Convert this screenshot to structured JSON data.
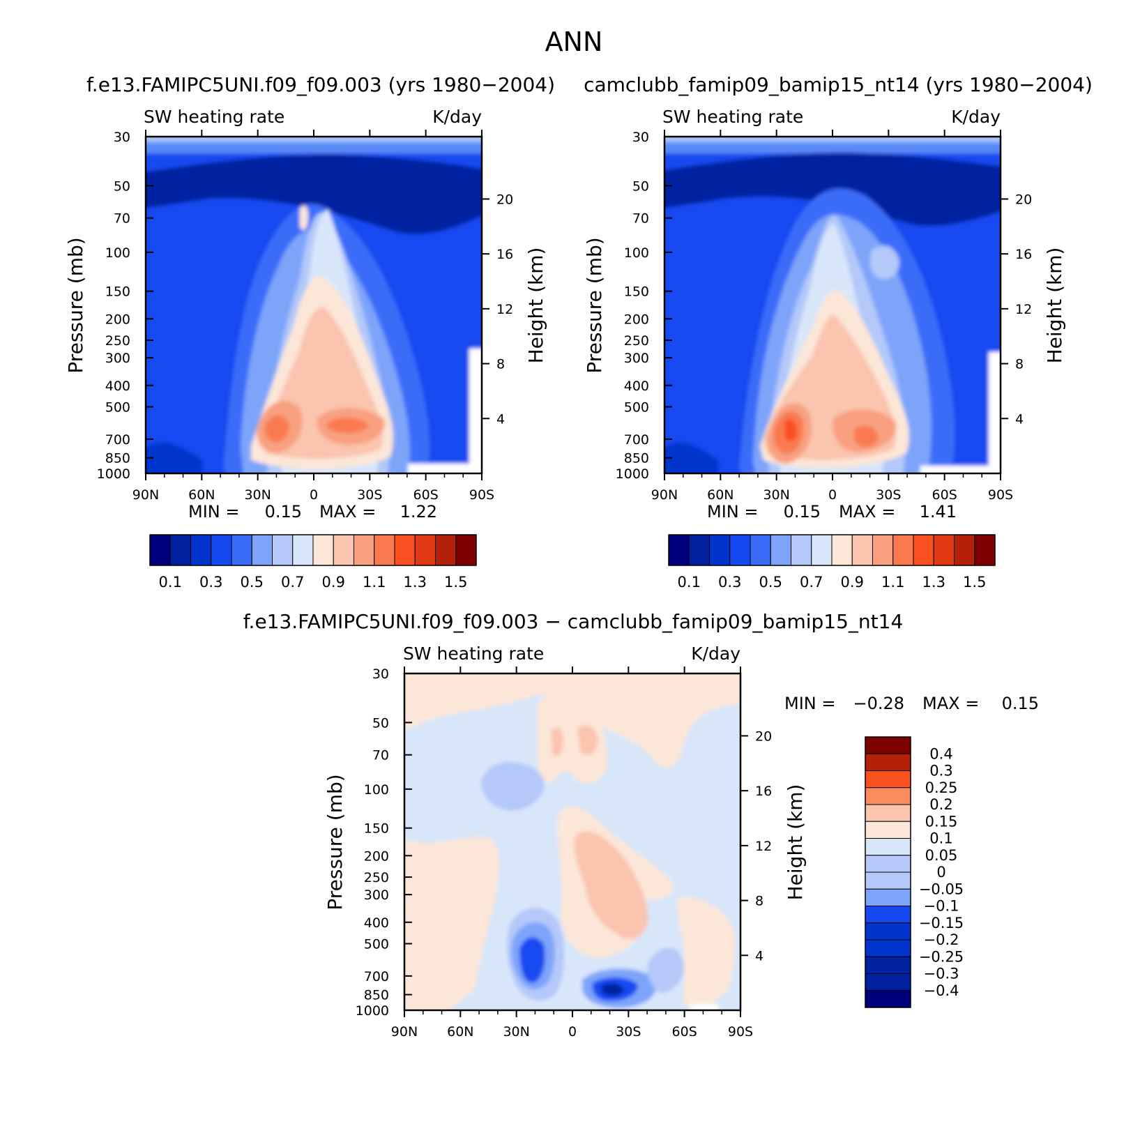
{
  "figure": {
    "title": "ANN",
    "diff_title": "f.e13.FAMIPC5UNI.f09_f09.003 − camclubb_famip09_bamip15_nt14"
  },
  "colors": {
    "main_scale": [
      "#00007f",
      "#0020a0",
      "#0034cc",
      "#1448f0",
      "#3a6cf8",
      "#7ea4fa",
      "#b4c8fa",
      "#d8e6fa",
      "#fce6d8",
      "#fac4ae",
      "#f8a080",
      "#fa7a50",
      "#fa5020",
      "#e03810",
      "#b42008",
      "#7f0000"
    ],
    "diff_scale": [
      "#00007f",
      "#0020a0",
      "#0034cc",
      "#1448f0",
      "#7ea4fa",
      "#b4c8fa",
      "#d8e6fa",
      "#fce6d8",
      "#fac4ae",
      "#f88c5c",
      "#fa5020",
      "#b42008",
      "#7f0000"
    ]
  },
  "chart_data": [
    {
      "type": "heatmap",
      "panel": "left",
      "title": "f.e13.FAMIPC5UNI.f09_f09.003 (yrs 1980−2004)",
      "field_label": "SW heating rate",
      "units": "K/day",
      "ylabel": "Pressure (mb)",
      "ylabel_right": "Height (km)",
      "x_ticks": [
        "90N",
        "60N",
        "30N",
        "0",
        "30S",
        "60S",
        "90S"
      ],
      "y_ticks": [
        "30",
        "50",
        "70",
        "100",
        "150",
        "200",
        "250",
        "300",
        "400",
        "500",
        "700",
        "850",
        "1000"
      ],
      "y_ticks_right": [
        "20",
        "16",
        "12",
        "8",
        "4"
      ],
      "stats": {
        "min_label": "MIN =",
        "min": "0.15",
        "max_label": "MAX =",
        "max": "1.22"
      },
      "colorbar_labels": [
        "0.1",
        "0.3",
        "0.5",
        "0.7",
        "0.9",
        "1.1",
        "1.3",
        "1.5"
      ]
    },
    {
      "type": "heatmap",
      "panel": "right",
      "title": "camclubb_famip09_bamip15_nt14 (yrs 1980−2004)",
      "field_label": "SW heating rate",
      "units": "K/day",
      "ylabel": "Pressure (mb)",
      "ylabel_right": "Height (km)",
      "x_ticks": [
        "90N",
        "60N",
        "30N",
        "0",
        "30S",
        "60S",
        "90S"
      ],
      "y_ticks": [
        "30",
        "50",
        "70",
        "100",
        "150",
        "200",
        "250",
        "300",
        "400",
        "500",
        "700",
        "850",
        "1000"
      ],
      "y_ticks_right": [
        "20",
        "16",
        "12",
        "8",
        "4"
      ],
      "stats": {
        "min_label": "MIN =",
        "min": "0.15",
        "max_label": "MAX =",
        "max": "1.41"
      },
      "colorbar_labels": [
        "0.1",
        "0.3",
        "0.5",
        "0.7",
        "0.9",
        "1.1",
        "1.3",
        "1.5"
      ]
    },
    {
      "type": "heatmap",
      "panel": "difference",
      "field_label": "SW heating rate",
      "units": "K/day",
      "ylabel": "Pressure (mb)",
      "ylabel_right": "Height (km)",
      "x_ticks": [
        "90N",
        "60N",
        "30N",
        "0",
        "30S",
        "60S",
        "90S"
      ],
      "y_ticks": [
        "30",
        "50",
        "70",
        "100",
        "150",
        "200",
        "250",
        "300",
        "400",
        "500",
        "700",
        "850",
        "1000"
      ],
      "y_ticks_right": [
        "20",
        "16",
        "12",
        "8",
        "4"
      ],
      "stats": {
        "min_label": "MIN =",
        "min": "−0.28",
        "max_label": "MAX =",
        "max": "0.15"
      },
      "colorbar_labels": [
        "0.4",
        "0.3",
        "0.25",
        "0.2",
        "0.15",
        "0.1",
        "0.05",
        "0",
        "−0.05",
        "−0.1",
        "−0.15",
        "−0.2",
        "−0.25",
        "−0.3",
        "−0.4"
      ]
    }
  ]
}
